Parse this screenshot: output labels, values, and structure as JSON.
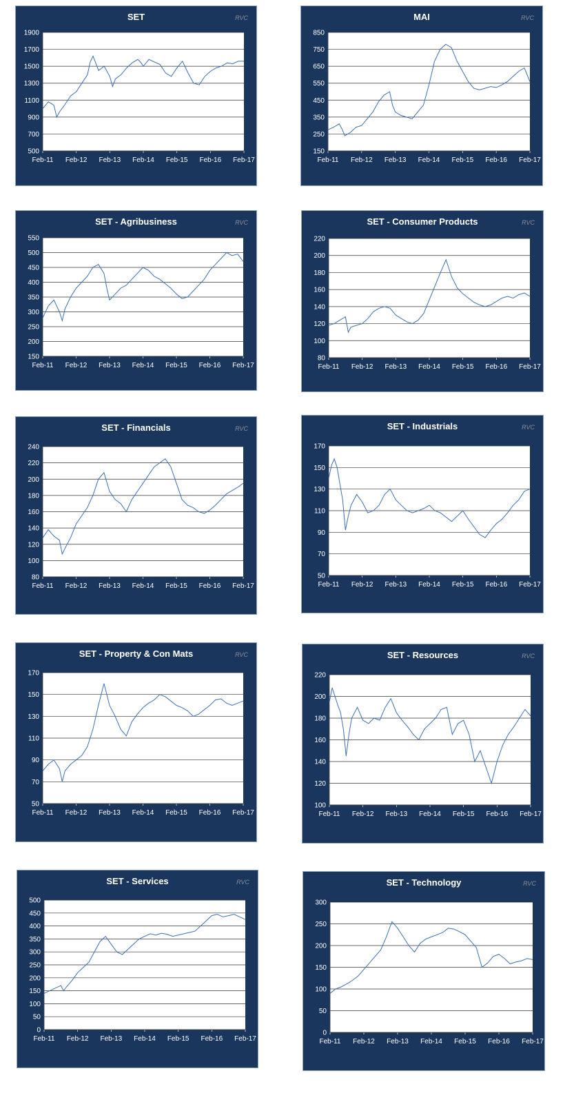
{
  "brand": "RVC",
  "colors": {
    "panel_bg": "#1b365d",
    "plot_bg": "#ffffff",
    "grid": "#333333",
    "line": "#3d6fb4",
    "text": "#ffffff"
  },
  "chart_data": [
    {
      "type": "line",
      "title": "SET",
      "xlabel": "",
      "ylabel": "",
      "x_ticks": [
        "Feb-11",
        "Feb-12",
        "Feb-13",
        "Feb-14",
        "Feb-15",
        "Feb-16",
        "Feb-17"
      ],
      "ylim": [
        500,
        1900
      ],
      "y_ticks": [
        500,
        700,
        900,
        1100,
        1300,
        1500,
        1700,
        1900
      ],
      "series": [
        {
          "x": [
            0,
            2,
            4,
            5,
            6,
            8,
            10,
            12,
            14,
            16,
            17,
            18,
            20,
            22,
            24,
            25,
            26,
            28,
            30,
            32,
            34,
            35,
            36,
            38,
            40,
            42,
            44,
            46,
            48,
            50,
            52,
            54,
            56,
            58,
            60,
            62,
            64,
            66,
            68,
            70,
            72
          ],
          "values": [
            1000,
            1080,
            1040,
            900,
            960,
            1050,
            1150,
            1200,
            1300,
            1400,
            1550,
            1620,
            1450,
            1500,
            1380,
            1260,
            1350,
            1400,
            1480,
            1540,
            1580,
            1550,
            1500,
            1580,
            1550,
            1520,
            1420,
            1380,
            1480,
            1560,
            1420,
            1300,
            1280,
            1380,
            1440,
            1480,
            1500,
            1540,
            1530,
            1560,
            1560
          ]
        }
      ],
      "grid": true,
      "legend": "none"
    },
    {
      "type": "line",
      "title": "MAI",
      "xlabel": "",
      "ylabel": "",
      "x_ticks": [
        "Feb-11",
        "Feb-12",
        "Feb-13",
        "Feb-14",
        "Feb-15",
        "Feb-16",
        "Feb-17"
      ],
      "ylim": [
        150,
        850
      ],
      "y_ticks": [
        150,
        250,
        350,
        450,
        550,
        650,
        750,
        850
      ],
      "series": [
        {
          "x": [
            0,
            2,
            4,
            5,
            6,
            8,
            10,
            12,
            14,
            16,
            18,
            20,
            22,
            23,
            24,
            26,
            28,
            30,
            32,
            34,
            36,
            38,
            40,
            42,
            44,
            46,
            48,
            50,
            52,
            54,
            56,
            58,
            60,
            62,
            64,
            66,
            68,
            70,
            72
          ],
          "values": [
            275,
            290,
            310,
            280,
            240,
            260,
            290,
            300,
            340,
            380,
            440,
            480,
            500,
            420,
            380,
            360,
            350,
            340,
            380,
            420,
            540,
            680,
            750,
            780,
            760,
            680,
            620,
            560,
            520,
            510,
            520,
            530,
            525,
            540,
            560,
            590,
            620,
            640,
            560
          ]
        }
      ],
      "grid": true,
      "legend": "none"
    },
    {
      "type": "line",
      "title": "SET - Agribusiness",
      "xlabel": "",
      "ylabel": "",
      "x_ticks": [
        "Feb-11",
        "Feb-12",
        "Feb-13",
        "Feb-14",
        "Feb-15",
        "Feb-16",
        "Feb-17"
      ],
      "ylim": [
        150,
        550
      ],
      "y_ticks": [
        150,
        200,
        250,
        300,
        350,
        400,
        450,
        500,
        550
      ],
      "series": [
        {
          "x": [
            0,
            2,
            4,
            6,
            7,
            8,
            10,
            12,
            14,
            16,
            18,
            20,
            22,
            23,
            24,
            26,
            28,
            30,
            32,
            34,
            36,
            38,
            40,
            42,
            44,
            46,
            48,
            50,
            52,
            54,
            56,
            58,
            60,
            62,
            64,
            66,
            68,
            70,
            72
          ],
          "values": [
            280,
            320,
            340,
            300,
            270,
            310,
            350,
            380,
            400,
            420,
            450,
            460,
            430,
            380,
            340,
            360,
            380,
            390,
            410,
            430,
            450,
            440,
            420,
            410,
            395,
            380,
            360,
            345,
            350,
            370,
            390,
            410,
            440,
            460,
            480,
            500,
            490,
            495,
            470
          ]
        }
      ],
      "grid": true,
      "legend": "none"
    },
    {
      "type": "line",
      "title": "SET - Consumer Products",
      "xlabel": "",
      "ylabel": "",
      "x_ticks": [
        "Feb-11",
        "Feb-12",
        "Feb-13",
        "Feb-14",
        "Feb-15",
        "Feb-16",
        "Feb-17"
      ],
      "ylim": [
        80,
        220
      ],
      "y_ticks": [
        80,
        100,
        120,
        140,
        160,
        180,
        200,
        220
      ],
      "series": [
        {
          "x": [
            0,
            2,
            4,
            6,
            7,
            8,
            10,
            12,
            14,
            16,
            18,
            20,
            22,
            24,
            26,
            28,
            30,
            32,
            34,
            36,
            38,
            40,
            42,
            44,
            46,
            48,
            50,
            52,
            54,
            56,
            58,
            60,
            62,
            64,
            66,
            68,
            70,
            72
          ],
          "values": [
            118,
            120,
            124,
            128,
            110,
            116,
            118,
            120,
            126,
            134,
            138,
            140,
            138,
            130,
            126,
            122,
            120,
            124,
            132,
            148,
            164,
            180,
            195,
            175,
            162,
            155,
            150,
            145,
            142,
            140,
            142,
            146,
            150,
            152,
            150,
            154,
            156,
            152
          ]
        }
      ],
      "grid": true,
      "legend": "none"
    },
    {
      "type": "line",
      "title": "SET - Financials",
      "xlabel": "",
      "ylabel": "",
      "x_ticks": [
        "Feb-11",
        "Feb-12",
        "Feb-13",
        "Feb-14",
        "Feb-15",
        "Feb-16",
        "Feb-17"
      ],
      "ylim": [
        80,
        240
      ],
      "y_ticks": [
        80,
        100,
        120,
        140,
        160,
        180,
        200,
        220,
        240
      ],
      "series": [
        {
          "x": [
            0,
            2,
            4,
            6,
            7,
            8,
            10,
            12,
            14,
            16,
            18,
            20,
            22,
            24,
            26,
            28,
            30,
            32,
            34,
            36,
            38,
            40,
            42,
            44,
            46,
            48,
            50,
            52,
            54,
            56,
            58,
            60,
            62,
            64,
            66,
            68,
            70,
            72
          ],
          "values": [
            128,
            138,
            130,
            125,
            108,
            115,
            128,
            145,
            155,
            165,
            180,
            200,
            208,
            185,
            175,
            170,
            160,
            175,
            185,
            195,
            205,
            215,
            220,
            225,
            215,
            195,
            175,
            168,
            165,
            160,
            158,
            162,
            168,
            175,
            182,
            186,
            190,
            195
          ]
        }
      ],
      "grid": true,
      "legend": "none"
    },
    {
      "type": "line",
      "title": "SET - Industrials",
      "xlabel": "",
      "ylabel": "",
      "x_ticks": [
        "Feb-11",
        "Feb-12",
        "Feb-13",
        "Feb-14",
        "Feb-15",
        "Feb-16",
        "Feb-17"
      ],
      "ylim": [
        50,
        170
      ],
      "y_ticks": [
        50,
        70,
        90,
        110,
        130,
        150,
        170
      ],
      "series": [
        {
          "x": [
            0,
            1,
            2,
            3,
            4,
            5,
            6,
            7,
            8,
            10,
            12,
            14,
            16,
            18,
            20,
            22,
            24,
            26,
            28,
            30,
            32,
            34,
            36,
            38,
            40,
            42,
            44,
            46,
            48,
            50,
            52,
            54,
            56,
            58,
            60,
            62,
            64,
            66,
            68,
            70,
            72
          ],
          "values": [
            140,
            152,
            158,
            150,
            135,
            120,
            92,
            105,
            115,
            125,
            118,
            108,
            110,
            115,
            125,
            130,
            120,
            115,
            110,
            108,
            110,
            112,
            115,
            110,
            108,
            104,
            100,
            105,
            110,
            102,
            95,
            88,
            85,
            92,
            98,
            102,
            108,
            115,
            120,
            128,
            130
          ]
        }
      ],
      "grid": true,
      "legend": "none"
    },
    {
      "type": "line",
      "title": "SET - Property & Con Mats",
      "xlabel": "",
      "ylabel": "",
      "x_ticks": [
        "Feb-11",
        "Feb-12",
        "Feb-13",
        "Feb-14",
        "Feb-15",
        "Feb-16",
        "Feb-17"
      ],
      "ylim": [
        50,
        170
      ],
      "y_ticks": [
        50,
        70,
        90,
        110,
        130,
        150,
        170
      ],
      "series": [
        {
          "x": [
            0,
            2,
            4,
            6,
            7,
            8,
            10,
            12,
            14,
            16,
            18,
            20,
            22,
            24,
            26,
            28,
            30,
            32,
            34,
            36,
            38,
            40,
            42,
            44,
            46,
            48,
            50,
            52,
            54,
            56,
            58,
            60,
            62,
            64,
            66,
            68,
            70,
            72
          ],
          "values": [
            80,
            86,
            90,
            82,
            70,
            80,
            86,
            90,
            94,
            102,
            118,
            140,
            160,
            140,
            130,
            118,
            112,
            125,
            132,
            138,
            142,
            145,
            150,
            148,
            144,
            140,
            138,
            135,
            130,
            132,
            136,
            140,
            145,
            146,
            142,
            140,
            142,
            144
          ]
        }
      ],
      "grid": true,
      "legend": "none"
    },
    {
      "type": "line",
      "title": "SET - Resources",
      "xlabel": "",
      "ylabel": "",
      "x_ticks": [
        "Feb-11",
        "Feb-12",
        "Feb-13",
        "Feb-14",
        "Feb-15",
        "Feb-16",
        "Feb-17"
      ],
      "ylim": [
        100,
        220
      ],
      "y_ticks": [
        100,
        120,
        140,
        160,
        180,
        200,
        220
      ],
      "series": [
        {
          "x": [
            0,
            1,
            2,
            3,
            4,
            5,
            6,
            7,
            8,
            10,
            12,
            14,
            16,
            18,
            20,
            22,
            24,
            26,
            28,
            30,
            32,
            34,
            36,
            38,
            40,
            42,
            44,
            46,
            48,
            50,
            52,
            54,
            56,
            58,
            60,
            62,
            64,
            66,
            68,
            70,
            72
          ],
          "values": [
            195,
            208,
            200,
            192,
            185,
            170,
            145,
            165,
            180,
            190,
            178,
            175,
            180,
            178,
            190,
            198,
            185,
            178,
            172,
            165,
            160,
            170,
            175,
            180,
            188,
            190,
            165,
            175,
            178,
            165,
            140,
            150,
            135,
            120,
            140,
            155,
            165,
            172,
            180,
            188,
            182
          ]
        }
      ],
      "grid": true,
      "legend": "none"
    },
    {
      "type": "line",
      "title": "SET - Services",
      "xlabel": "",
      "ylabel": "",
      "x_ticks": [
        "Feb-11",
        "Feb-12",
        "Feb-13",
        "Feb-14",
        "Feb-15",
        "Feb-16",
        "Feb-17"
      ],
      "ylim": [
        0,
        500
      ],
      "y_ticks": [
        0,
        50,
        100,
        150,
        200,
        250,
        300,
        350,
        400,
        450,
        500
      ],
      "series": [
        {
          "x": [
            0,
            2,
            4,
            6,
            7,
            8,
            10,
            12,
            14,
            16,
            18,
            20,
            22,
            24,
            26,
            28,
            30,
            32,
            34,
            36,
            38,
            40,
            42,
            44,
            46,
            48,
            50,
            52,
            54,
            56,
            58,
            60,
            62,
            64,
            66,
            68,
            70,
            72
          ],
          "values": [
            140,
            150,
            160,
            170,
            150,
            165,
            190,
            220,
            240,
            260,
            300,
            340,
            360,
            330,
            300,
            290,
            310,
            330,
            350,
            360,
            370,
            365,
            372,
            368,
            360,
            365,
            370,
            375,
            380,
            400,
            420,
            440,
            445,
            435,
            440,
            445,
            435,
            425
          ]
        }
      ],
      "grid": true,
      "legend": "none"
    },
    {
      "type": "line",
      "title": "SET - Technology",
      "xlabel": "",
      "ylabel": "",
      "x_ticks": [
        "Feb-11",
        "Feb-12",
        "Feb-13",
        "Feb-14",
        "Feb-15",
        "Feb-16",
        "Feb-17"
      ],
      "ylim": [
        0,
        300
      ],
      "y_ticks": [
        0,
        50,
        100,
        150,
        200,
        250,
        300
      ],
      "series": [
        {
          "x": [
            0,
            2,
            4,
            6,
            8,
            10,
            12,
            14,
            16,
            18,
            20,
            22,
            24,
            26,
            28,
            30,
            32,
            34,
            36,
            38,
            40,
            42,
            44,
            46,
            48,
            50,
            52,
            54,
            56,
            58,
            60,
            62,
            64,
            66,
            68,
            70,
            72
          ],
          "values": [
            90,
            100,
            105,
            112,
            120,
            130,
            145,
            160,
            175,
            190,
            220,
            255,
            240,
            220,
            200,
            185,
            205,
            215,
            220,
            225,
            230,
            240,
            238,
            232,
            225,
            210,
            195,
            150,
            160,
            175,
            180,
            170,
            158,
            162,
            165,
            170,
            168
          ]
        }
      ],
      "grid": true,
      "legend": "none"
    }
  ]
}
